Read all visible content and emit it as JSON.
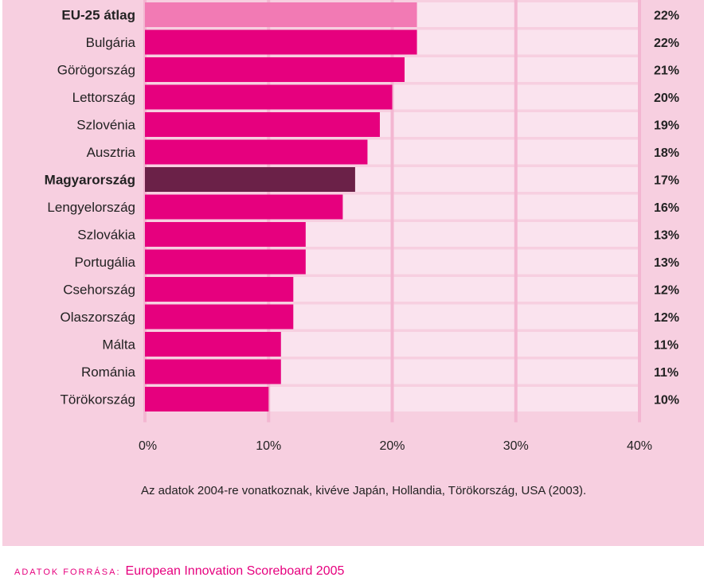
{
  "chart_data": {
    "type": "bar",
    "orientation": "horizontal",
    "categories": [
      "EU-25 átlag",
      "Bulgária",
      "Görögország",
      "Lettország",
      "Szlovénia",
      "Ausztria",
      "Magyarország",
      "Lengyelország",
      "Szlovákia",
      "Portugália",
      "Csehország",
      "Olaszország",
      "Málta",
      "Románia",
      "Törökország"
    ],
    "values": [
      22,
      22,
      21,
      20,
      19,
      18,
      17,
      16,
      13,
      13,
      12,
      12,
      11,
      11,
      10
    ],
    "value_labels": [
      "22%",
      "22%",
      "21%",
      "20%",
      "19%",
      "18%",
      "17%",
      "16%",
      "13%",
      "13%",
      "12%",
      "12%",
      "11%",
      "11%",
      "10%"
    ],
    "bold_categories": [
      "EU-25 átlag",
      "Magyarország"
    ],
    "xlim": [
      0,
      40
    ],
    "xticks": [
      0,
      10,
      20,
      30,
      40
    ],
    "xtick_labels": [
      "0%",
      "10%",
      "20%",
      "30%",
      "40%"
    ],
    "grid": true,
    "colors": {
      "default": "#e6007e",
      "eu_average": "#f27ab4",
      "hungary": "#6b2148",
      "background": "#f7cfe0",
      "track": "#fae3ee",
      "gridline": "#f3b6d1"
    }
  },
  "note": "Az adatok 2004-re vonatkoznak, kivéve Japán, Hollandia, Törökország, USA (2003).",
  "source": {
    "label": "Adatok forrása:",
    "text": "European Innovation Scoreboard 2005"
  }
}
